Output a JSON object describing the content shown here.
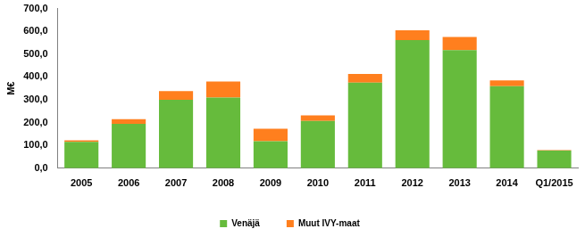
{
  "chart_data": {
    "type": "bar",
    "stacked": true,
    "grid": false,
    "legend": "bottom",
    "y_label": "M€",
    "categories": [
      "2005",
      "2006",
      "2007",
      "2008",
      "2009",
      "2010",
      "2011",
      "2012",
      "2013",
      "2014",
      "Q1/2015"
    ],
    "series": [
      {
        "name": "Venäjä",
        "color": "#66bb3c",
        "values": [
          115,
          195,
          300,
          310,
          118,
          207,
          375,
          562,
          518,
          360,
          77
        ]
      },
      {
        "name": "Muut IVY-maat",
        "color": "#ff7f1e",
        "values": [
          7,
          20,
          38,
          70,
          55,
          25,
          38,
          43,
          57,
          25,
          2
        ]
      }
    ],
    "ylim": [
      0,
      700
    ],
    "yticks": [
      {
        "value": 0,
        "label": "0,0"
      },
      {
        "value": 100,
        "label": "100,0"
      },
      {
        "value": 200,
        "label": "200,0"
      },
      {
        "value": 300,
        "label": "300,0"
      },
      {
        "value": 400,
        "label": "400,0"
      },
      {
        "value": 500,
        "label": "500,0"
      },
      {
        "value": 600,
        "label": "600,0"
      },
      {
        "value": 700,
        "label": "700,0"
      }
    ]
  }
}
